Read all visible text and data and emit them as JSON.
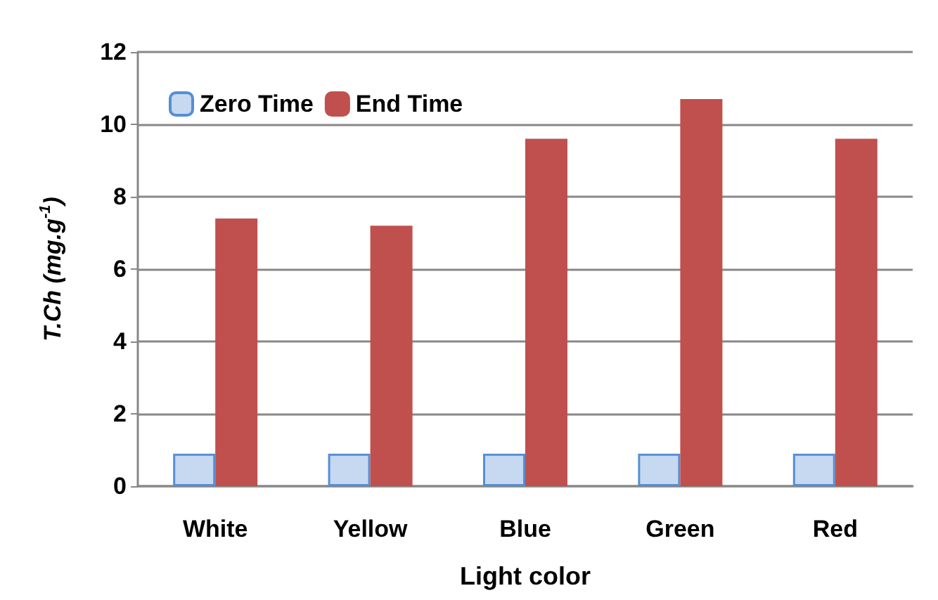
{
  "chart_data": {
    "type": "bar",
    "xlabel": "Light color",
    "ylabel": "T.Ch (mg.g$^{-1}$)",
    "categories": [
      "White",
      "Yellow",
      "Blue",
      "Green",
      "Red"
    ],
    "series": [
      {
        "name": "Zero Time",
        "color": "#c6d9f1",
        "values": [
          0.9,
          0.9,
          0.9,
          0.9,
          0.9
        ]
      },
      {
        "name": "End Time",
        "color": "#c0504d",
        "values": [
          7.4,
          7.2,
          9.6,
          10.7,
          9.6
        ]
      }
    ],
    "ylim": [
      0,
      12
    ],
    "yticks": [
      0,
      2,
      4,
      6,
      8,
      10,
      12
    ],
    "grid": "y",
    "legend": "top left"
  }
}
